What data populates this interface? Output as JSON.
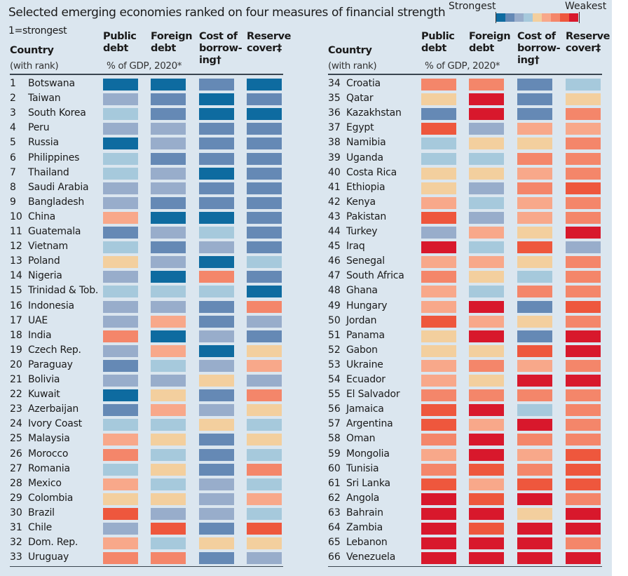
{
  "header": {
    "title": "Selected emerging economies ranked on four measures of financial strength",
    "subtitle": "1=strongest",
    "legend_strong": "Strongest",
    "legend_weak": "Weakest",
    "country_label": "Country",
    "rank_label": "(with rank)",
    "columns": [
      "Public debt",
      "Foreign debt",
      "Cost of borrow-ing†",
      "Reserve cover‡"
    ],
    "unit_label": "% of GDP, 2020*"
  },
  "colors": [
    "#0e6ba0",
    "#6589b5",
    "#98adcb",
    "#a6c9dc",
    "#f3cf9e",
    "#f8a88a",
    "#f4866a",
    "#ee573d",
    "#d8182c"
  ],
  "chart_data": {
    "type": "heatmap",
    "title": "Selected emerging economies ranked on four measures of financial strength",
    "scale": "9 bins, 1=strongest (dark blue) to 9=weakest (red)",
    "columns": [
      "Public debt",
      "Foreign debt",
      "Cost of borrowing",
      "Reserve cover"
    ],
    "rows": [
      {
        "rank": 1,
        "country": "Botswana",
        "values": [
          1,
          1,
          2,
          1
        ]
      },
      {
        "rank": 2,
        "country": "Taiwan",
        "values": [
          3,
          2,
          1,
          2
        ]
      },
      {
        "rank": 3,
        "country": "South Korea",
        "values": [
          4,
          2,
          1,
          1
        ]
      },
      {
        "rank": 4,
        "country": "Peru",
        "values": [
          3,
          3,
          2,
          2
        ]
      },
      {
        "rank": 5,
        "country": "Russia",
        "values": [
          1,
          3,
          2,
          2
        ]
      },
      {
        "rank": 6,
        "country": "Philippines",
        "values": [
          4,
          2,
          2,
          2
        ]
      },
      {
        "rank": 7,
        "country": "Thailand",
        "values": [
          4,
          3,
          1,
          2
        ]
      },
      {
        "rank": 8,
        "country": "Saudi Arabia",
        "values": [
          3,
          3,
          2,
          2
        ]
      },
      {
        "rank": 9,
        "country": "Bangladesh",
        "values": [
          3,
          2,
          2,
          2
        ]
      },
      {
        "rank": 10,
        "country": "China",
        "values": [
          6,
          1,
          1,
          2
        ]
      },
      {
        "rank": 11,
        "country": "Guatemala",
        "values": [
          2,
          3,
          4,
          2
        ]
      },
      {
        "rank": 12,
        "country": "Vietnam",
        "values": [
          4,
          2,
          3,
          2
        ]
      },
      {
        "rank": 13,
        "country": "Poland",
        "values": [
          5,
          3,
          1,
          4
        ]
      },
      {
        "rank": 14,
        "country": "Nigeria",
        "values": [
          3,
          1,
          7,
          2
        ]
      },
      {
        "rank": 15,
        "country": "Trinidad & Tob.",
        "values": [
          4,
          4,
          4,
          1
        ]
      },
      {
        "rank": 16,
        "country": "Indonesia",
        "values": [
          3,
          3,
          2,
          7
        ]
      },
      {
        "rank": 17,
        "country": "UAE",
        "values": [
          3,
          6,
          2,
          3
        ]
      },
      {
        "rank": 18,
        "country": "India",
        "values": [
          7,
          1,
          3,
          2
        ]
      },
      {
        "rank": 19,
        "country": "Czech Rep.",
        "values": [
          3,
          6,
          1,
          5
        ]
      },
      {
        "rank": 20,
        "country": "Paraguay",
        "values": [
          2,
          4,
          3,
          6
        ]
      },
      {
        "rank": 21,
        "country": "Bolivia",
        "values": [
          3,
          3,
          5,
          3
        ]
      },
      {
        "rank": 22,
        "country": "Kuwait",
        "values": [
          1,
          5,
          2,
          7
        ]
      },
      {
        "rank": 23,
        "country": "Azerbaijan",
        "values": [
          2,
          6,
          3,
          5
        ]
      },
      {
        "rank": 24,
        "country": "Ivory Coast",
        "values": [
          4,
          4,
          5,
          4
        ]
      },
      {
        "rank": 25,
        "country": "Malaysia",
        "values": [
          6,
          5,
          2,
          5
        ]
      },
      {
        "rank": 26,
        "country": "Morocco",
        "values": [
          7,
          4,
          2,
          4
        ]
      },
      {
        "rank": 27,
        "country": "Romania",
        "values": [
          4,
          5,
          2,
          7
        ]
      },
      {
        "rank": 28,
        "country": "Mexico",
        "values": [
          6,
          4,
          3,
          4
        ]
      },
      {
        "rank": 29,
        "country": "Colombia",
        "values": [
          5,
          5,
          3,
          6
        ]
      },
      {
        "rank": 30,
        "country": "Brazil",
        "values": [
          8,
          3,
          3,
          4
        ]
      },
      {
        "rank": 31,
        "country": "Chile",
        "values": [
          3,
          8,
          2,
          8
        ]
      },
      {
        "rank": 32,
        "country": "Dom. Rep.",
        "values": [
          6,
          4,
          5,
          5
        ]
      },
      {
        "rank": 33,
        "country": "Uruguay",
        "values": [
          7,
          7,
          2,
          3
        ]
      },
      {
        "rank": 34,
        "country": "Croatia",
        "values": [
          7,
          7,
          2,
          4
        ]
      },
      {
        "rank": 35,
        "country": "Qatar",
        "values": [
          5,
          9,
          2,
          5
        ]
      },
      {
        "rank": 36,
        "country": "Kazakhstan",
        "values": [
          2,
          9,
          2,
          7
        ]
      },
      {
        "rank": 37,
        "country": "Egypt",
        "values": [
          8,
          3,
          6,
          6
        ]
      },
      {
        "rank": 38,
        "country": "Namibia",
        "values": [
          4,
          5,
          5,
          7
        ]
      },
      {
        "rank": 39,
        "country": "Uganda",
        "values": [
          4,
          4,
          7,
          7
        ]
      },
      {
        "rank": 40,
        "country": "Costa Rica",
        "values": [
          5,
          5,
          6,
          7
        ]
      },
      {
        "rank": 41,
        "country": "Ethiopia",
        "values": [
          5,
          3,
          7,
          8
        ]
      },
      {
        "rank": 42,
        "country": "Kenya",
        "values": [
          6,
          4,
          6,
          7
        ]
      },
      {
        "rank": 43,
        "country": "Pakistan",
        "values": [
          8,
          3,
          6,
          7
        ]
      },
      {
        "rank": 44,
        "country": "Turkey",
        "values": [
          3,
          6,
          5,
          9
        ]
      },
      {
        "rank": 45,
        "country": "Iraq",
        "values": [
          9,
          4,
          8,
          3
        ]
      },
      {
        "rank": 46,
        "country": "Senegal",
        "values": [
          6,
          6,
          5,
          7
        ]
      },
      {
        "rank": 47,
        "country": "South Africa",
        "values": [
          7,
          5,
          4,
          7
        ]
      },
      {
        "rank": 48,
        "country": "Ghana",
        "values": [
          6,
          4,
          7,
          7
        ]
      },
      {
        "rank": 49,
        "country": "Hungary",
        "values": [
          6,
          9,
          2,
          8
        ]
      },
      {
        "rank": 50,
        "country": "Jordan",
        "values": [
          8,
          6,
          5,
          7
        ]
      },
      {
        "rank": 51,
        "country": "Panama",
        "values": [
          5,
          9,
          2,
          9
        ]
      },
      {
        "rank": 52,
        "country": "Gabon",
        "values": [
          5,
          5,
          8,
          9
        ]
      },
      {
        "rank": 53,
        "country": "Ukraine",
        "values": [
          6,
          7,
          6,
          7
        ]
      },
      {
        "rank": 54,
        "country": "Ecuador",
        "values": [
          6,
          5,
          9,
          9
        ]
      },
      {
        "rank": 55,
        "country": "El Salvador",
        "values": [
          7,
          7,
          7,
          7
        ]
      },
      {
        "rank": 56,
        "country": "Jamaica",
        "values": [
          8,
          9,
          4,
          7
        ]
      },
      {
        "rank": 57,
        "country": "Argentina",
        "values": [
          8,
          6,
          9,
          7
        ]
      },
      {
        "rank": 58,
        "country": "Oman",
        "values": [
          7,
          9,
          7,
          7
        ]
      },
      {
        "rank": 59,
        "country": "Mongolia",
        "values": [
          6,
          9,
          6,
          8
        ]
      },
      {
        "rank": 60,
        "country": "Tunisia",
        "values": [
          7,
          8,
          7,
          8
        ]
      },
      {
        "rank": 61,
        "country": "Sri Lanka",
        "values": [
          8,
          6,
          8,
          8
        ]
      },
      {
        "rank": 62,
        "country": "Angola",
        "values": [
          9,
          8,
          9,
          7
        ]
      },
      {
        "rank": 63,
        "country": "Bahrain",
        "values": [
          9,
          9,
          5,
          9
        ]
      },
      {
        "rank": 64,
        "country": "Zambia",
        "values": [
          9,
          8,
          9,
          9
        ]
      },
      {
        "rank": 65,
        "country": "Lebanon",
        "values": [
          9,
          9,
          9,
          7
        ]
      },
      {
        "rank": 66,
        "country": "Venezuela",
        "values": [
          9,
          9,
          9,
          9
        ]
      }
    ]
  }
}
